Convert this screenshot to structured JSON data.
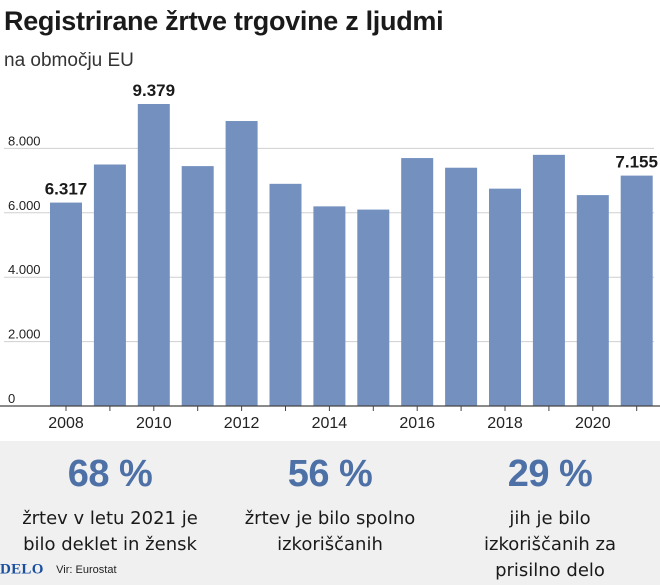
{
  "title": "Registrirane žrtve trgovine z ljudmi",
  "subtitle": "na območju EU",
  "chart_data": {
    "type": "bar",
    "categories": [
      "2008",
      "2009",
      "2010",
      "2011",
      "2012",
      "2013",
      "2014",
      "2015",
      "2016",
      "2017",
      "2018",
      "2019",
      "2020",
      "2021"
    ],
    "values": [
      6317,
      7500,
      9379,
      7450,
      8850,
      6900,
      6200,
      6100,
      7700,
      7400,
      6750,
      7800,
      6550,
      7155
    ],
    "x_tick_labels": [
      "2008",
      "2010",
      "2012",
      "2014",
      "2016",
      "2018",
      "2020"
    ],
    "y_ticks": [
      0,
      2000,
      4000,
      6000,
      8000
    ],
    "y_tick_labels": [
      "0",
      "2.000",
      "4.000",
      "6.000",
      "8.000"
    ],
    "ylim": [
      0,
      10000
    ],
    "data_labels": [
      {
        "index": 0,
        "text": "6.317"
      },
      {
        "index": 2,
        "text": "9.379"
      },
      {
        "index": 13,
        "text": "7.155"
      }
    ],
    "grid": true,
    "bar_color": "#7390bf"
  },
  "stats": [
    {
      "value": "68 %",
      "desc": "žrtev v letu 2021 je bilo deklet in žensk"
    },
    {
      "value": "56 %",
      "desc": "žrtev je bilo spolno izkoriščanih"
    },
    {
      "value": "29 %",
      "desc": "jih je bilo izkoriščanih za prisilno delo"
    }
  ],
  "footer": {
    "logo": "DELO",
    "source": "Vir: Eurostat"
  }
}
